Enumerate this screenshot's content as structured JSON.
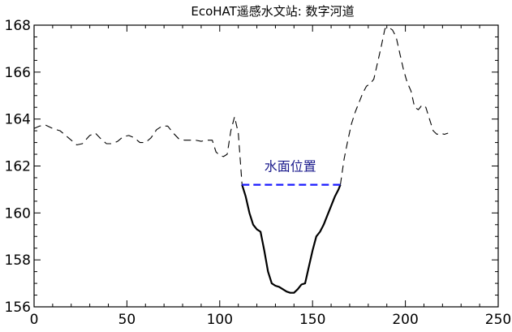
{
  "chart_data": {
    "type": "line",
    "title": "EcoHAT遥感水文站: 数字河道",
    "xlabel": "",
    "ylabel": "",
    "xlim": [
      0,
      250
    ],
    "ylim": [
      156,
      168
    ],
    "x_ticks": [
      0,
      50,
      100,
      150,
      200,
      250
    ],
    "y_ticks": [
      156,
      158,
      160,
      162,
      164,
      166,
      168
    ],
    "x_minor_step": 10,
    "y_minor_step": 0.5,
    "grid": false,
    "series": [
      {
        "style": "dashed",
        "color": "#000000",
        "x": [
          0,
          3,
          6,
          10,
          14,
          17,
          20,
          23,
          26,
          30,
          33,
          36,
          39,
          42,
          45,
          48,
          51,
          54,
          57,
          60,
          63,
          66,
          69,
          72,
          75,
          78,
          81,
          84,
          87,
          90,
          93,
          96,
          98,
          100,
          102,
          104,
          106,
          108,
          110,
          112
        ],
        "y": [
          163.6,
          163.7,
          163.75,
          163.6,
          163.5,
          163.3,
          163.1,
          162.9,
          162.95,
          163.3,
          163.4,
          163.15,
          162.95,
          162.95,
          163.05,
          163.25,
          163.3,
          163.2,
          163.0,
          163.0,
          163.2,
          163.55,
          163.7,
          163.7,
          163.4,
          163.15,
          163.1,
          163.1,
          163.1,
          163.05,
          163.1,
          163.1,
          162.6,
          162.45,
          162.4,
          162.5,
          163.5,
          164.1,
          163.4,
          161.2
        ]
      },
      {
        "style": "solid",
        "color": "#000000",
        "x": [
          112,
          114,
          116,
          118,
          120,
          122,
          124,
          126,
          128,
          130,
          132,
          134,
          136,
          138,
          140,
          142,
          144,
          146,
          148,
          150,
          152,
          154,
          156,
          158,
          160,
          162,
          164,
          165
        ],
        "y": [
          161.2,
          160.7,
          160.0,
          159.5,
          159.3,
          159.2,
          158.4,
          157.5,
          157.0,
          156.9,
          156.85,
          156.75,
          156.65,
          156.6,
          156.6,
          156.75,
          156.95,
          157.0,
          157.7,
          158.4,
          159.0,
          159.2,
          159.5,
          159.9,
          160.3,
          160.7,
          161.0,
          161.2
        ]
      },
      {
        "style": "dashed",
        "color": "#000000",
        "x": [
          165,
          167,
          169,
          171,
          173,
          175,
          177,
          179,
          181,
          183,
          185,
          187,
          189,
          191,
          193,
          195,
          197,
          199,
          201,
          203,
          205,
          207,
          209,
          211,
          213,
          215,
          217,
          219,
          221,
          223
        ],
        "y": [
          161.2,
          162.3,
          163.1,
          163.8,
          164.3,
          164.7,
          165.1,
          165.4,
          165.5,
          165.7,
          166.4,
          167.1,
          167.85,
          167.9,
          167.8,
          167.5,
          166.8,
          166.1,
          165.55,
          165.2,
          164.5,
          164.4,
          164.6,
          164.5,
          164.0,
          163.5,
          163.35,
          163.4,
          163.35,
          163.4
        ]
      },
      {
        "style": "dashed",
        "color": "#1a1aff",
        "x": [
          112,
          165
        ],
        "y": [
          161.2,
          161.2
        ]
      }
    ],
    "annotations": [
      {
        "text": "水面位置",
        "x": 138,
        "y": 161.8
      }
    ]
  }
}
